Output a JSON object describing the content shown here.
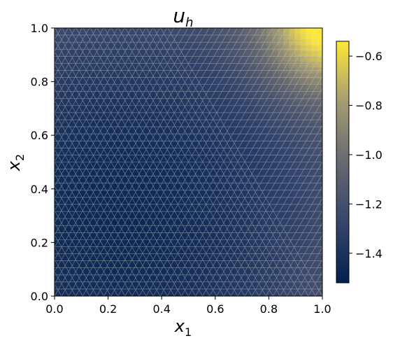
{
  "chart_data": {
    "type": "heatmap",
    "title": {
      "base": "u",
      "sub": "h"
    },
    "xlabel": {
      "base": "x",
      "sub": "1"
    },
    "ylabel": {
      "base": "x",
      "sub": "2"
    },
    "xlim": [
      0.0,
      1.0
    ],
    "ylim": [
      0.0,
      1.0
    ],
    "x_ticks": [
      "0.0",
      "0.2",
      "0.4",
      "0.6",
      "0.8",
      "1.0"
    ],
    "y_ticks": [
      "0.0",
      "0.2",
      "0.4",
      "0.6",
      "0.8",
      "1.0"
    ],
    "colorbar": {
      "colormap": "cividis",
      "vmin": -1.52,
      "vmax": -0.54,
      "ticks": [
        "−0.6",
        "−0.8",
        "−1.0",
        "−1.2",
        "−1.4"
      ],
      "tick_values": [
        -0.6,
        -0.8,
        -1.0,
        -1.2,
        -1.4
      ]
    },
    "mesh": "triangulated mesh overlay",
    "field": {
      "description": "u_h minimum near (0.3, 0.3), maximum at top-right corner (1,1)",
      "min_value": -1.52,
      "max_value": -0.54,
      "min_location": [
        0.3,
        0.35
      ],
      "max_location": [
        1.0,
        1.0
      ]
    },
    "colors": {
      "low": "#00224e",
      "mid": "#7c7b78",
      "high": "#fee838",
      "mesh": "#d0d0d0"
    }
  }
}
